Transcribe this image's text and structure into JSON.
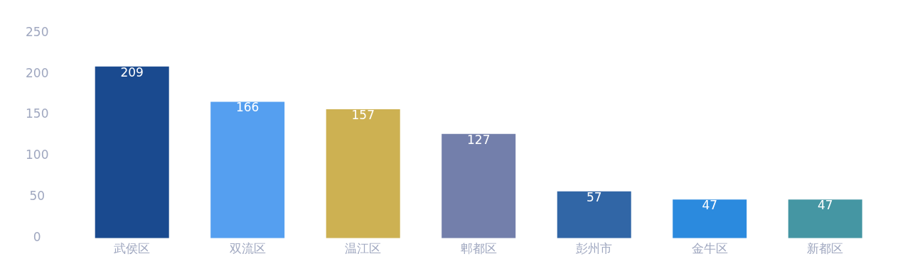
{
  "chart_data": {
    "type": "bar",
    "categories": [
      "武侯区",
      "双流区",
      "温江区",
      "郫都区",
      "彭州市",
      "金牛区",
      "新都区"
    ],
    "values": [
      209,
      166,
      157,
      127,
      57,
      47,
      47
    ],
    "colors": [
      "#1a4a8f",
      "#559ff0",
      "#cdb152",
      "#737fab",
      "#3166a6",
      "#2b8ade",
      "#4596a3"
    ],
    "ylim": [
      0,
      250
    ],
    "yticks": [
      0,
      50,
      100,
      150,
      200,
      250
    ],
    "data_labels": true,
    "grid": false,
    "legend": false
  }
}
